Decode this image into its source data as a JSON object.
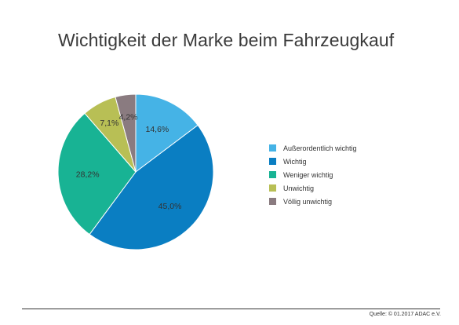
{
  "title": "Wichtigkeit der Marke beim Fahrzeugkauf",
  "source": "Quelle: © 01.2017 ADAC e.V.",
  "chart_data": {
    "type": "pie",
    "title": "Wichtigkeit der Marke beim Fahrzeugkauf",
    "legend_position": "right",
    "slices": [
      {
        "name": "Außerordentlich wichtig",
        "value": 14.6,
        "label": "14,6%",
        "color": "#45b3e6"
      },
      {
        "name": "Wichtig",
        "value": 45.0,
        "label": "45,0%",
        "color": "#0a7ec2"
      },
      {
        "name": "Weniger wichtig",
        "value": 28.2,
        "label": "28,2%",
        "color": "#18b394"
      },
      {
        "name": "Unwichtig",
        "value": 7.1,
        "label": "7,1%",
        "color": "#b8bf55"
      },
      {
        "name": "Völlig unwichtig",
        "value": 4.2,
        "label": "4,2%",
        "color": "#8a7b80"
      }
    ]
  }
}
